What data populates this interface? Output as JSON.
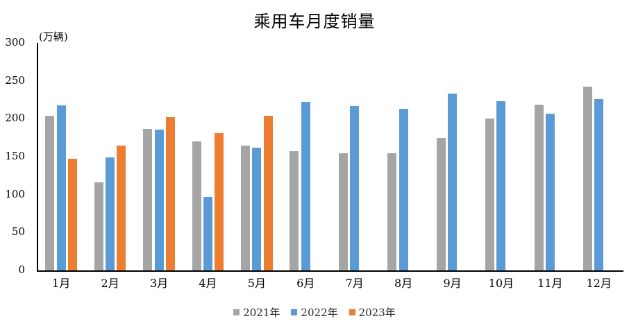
{
  "title": "乘用车月度销量",
  "y_axis": {
    "unit_label": "(万辆)",
    "ticks": [
      0,
      50,
      100,
      150,
      200,
      250,
      300
    ]
  },
  "chart_data": {
    "type": "bar",
    "title": "乘用车月度销量",
    "ylabel": "(万辆)",
    "ylim": [
      0,
      300
    ],
    "grid": false,
    "legend_position": "bottom",
    "categories": [
      "1月",
      "2月",
      "3月",
      "4月",
      "5月",
      "6月",
      "7月",
      "8月",
      "9月",
      "10月",
      "11月",
      "12月"
    ],
    "series": [
      {
        "name": "2021年",
        "color": "#A5A5A5",
        "values": [
          204,
          116,
          187,
          170,
          165,
          157,
          155,
          155,
          175,
          200,
          219,
          242
        ]
      },
      {
        "name": "2022年",
        "color": "#5B9BD5",
        "values": [
          218,
          149,
          186,
          97,
          162,
          222,
          217,
          213,
          233,
          223,
          207,
          226
        ]
      },
      {
        "name": "2023年",
        "color": "#ED7D31",
        "values": [
          147,
          165,
          202,
          181,
          204,
          null,
          null,
          null,
          null,
          null,
          null,
          null
        ]
      }
    ]
  }
}
